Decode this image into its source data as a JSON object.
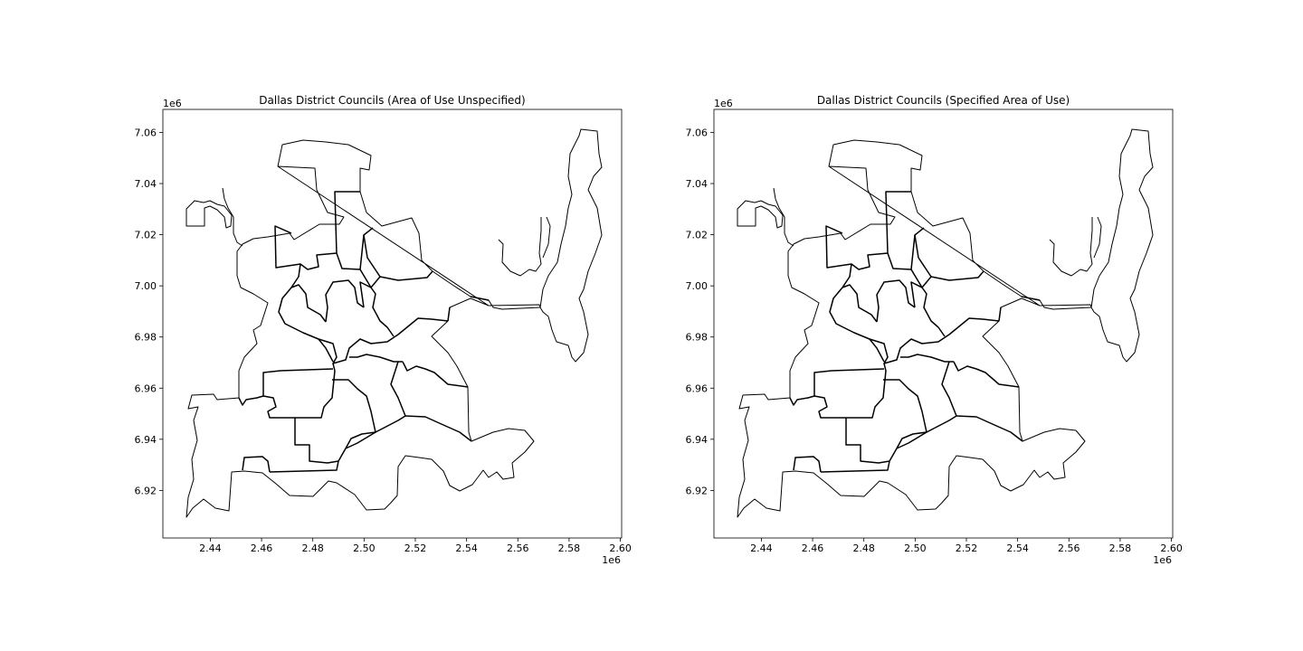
{
  "chart_data": [
    {
      "type": "map",
      "title": "Dallas District Councils (Area of Use Unspecified)",
      "x_ticks": [
        "2.44",
        "2.46",
        "2.48",
        "2.50",
        "2.52",
        "2.54",
        "2.56",
        "2.58",
        "2.60"
      ],
      "y_ticks": [
        "6.92",
        "6.94",
        "6.96",
        "6.98",
        "7.00",
        "7.02",
        "7.04",
        "7.06"
      ],
      "x_tick_values": [
        2.44,
        2.46,
        2.48,
        2.5,
        2.52,
        2.54,
        2.56,
        2.58,
        2.6
      ],
      "y_tick_values": [
        6.92,
        6.94,
        6.96,
        6.98,
        7.0,
        7.02,
        7.04,
        7.06
      ],
      "x_offset": "1e6",
      "y_offset": "1e6",
      "xlim": [
        2.4215,
        2.6005
      ],
      "ylim": [
        6.9014,
        7.069
      ]
    },
    {
      "type": "map",
      "title": "Dallas District Councils (Specified Area of Use)",
      "x_ticks": [
        "2.44",
        "2.46",
        "2.48",
        "2.50",
        "2.52",
        "2.54",
        "2.56",
        "2.58",
        "2.60"
      ],
      "y_ticks": [
        "6.92",
        "6.94",
        "6.96",
        "6.98",
        "7.00",
        "7.02",
        "7.04",
        "7.06"
      ],
      "x_tick_values": [
        2.44,
        2.46,
        2.48,
        2.5,
        2.52,
        2.54,
        2.56,
        2.58,
        2.6
      ],
      "y_tick_values": [
        6.92,
        6.94,
        6.96,
        6.98,
        7.0,
        7.02,
        7.04,
        7.06
      ],
      "x_offset": "1e6",
      "y_offset": "1e6",
      "xlim": [
        2.4215,
        2.6005
      ],
      "ylim": [
        6.9014,
        7.069
      ]
    }
  ]
}
